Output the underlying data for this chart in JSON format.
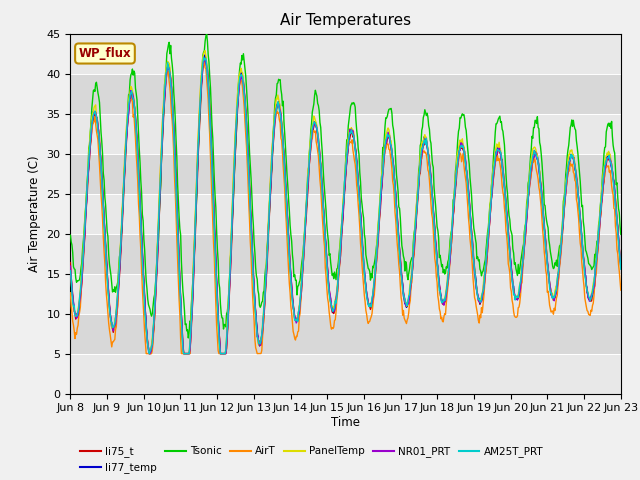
{
  "title": "Air Temperatures",
  "xlabel": "Time",
  "ylabel": "Air Temperature (C)",
  "ylim": [
    0,
    45
  ],
  "yticks": [
    0,
    5,
    10,
    15,
    20,
    25,
    30,
    35,
    40,
    45
  ],
  "n_days": 15,
  "x_tick_labels": [
    "Jun 8",
    "Jun 9",
    "Jun 10",
    "Jun 11",
    "Jun 12",
    "Jun 13",
    "Jun 14",
    "Jun 15",
    "Jun 16",
    "Jun 17",
    "Jun 18",
    "Jun 19",
    "Jun 20",
    "Jun 21",
    "Jun 22",
    "Jun 23"
  ],
  "series": {
    "li75_t": {
      "color": "#cc0000",
      "lw": 1.0
    },
    "li77_temp": {
      "color": "#0000cc",
      "lw": 1.0
    },
    "Tsonic": {
      "color": "#00cc00",
      "lw": 1.0
    },
    "AirT": {
      "color": "#ff8800",
      "lw": 1.0
    },
    "PanelTemp": {
      "color": "#dddd00",
      "lw": 1.0
    },
    "NR01_PRT": {
      "color": "#9900cc",
      "lw": 1.0
    },
    "AM25T_PRT": {
      "color": "#00cccc",
      "lw": 1.0
    }
  },
  "fig_bg": "#f0f0f0",
  "plot_bg": "#e8e8e8",
  "band_colors": [
    "#e8e8e8",
    "#d8d8d8"
  ],
  "annotation_text": "WP_flux",
  "annotation_fg": "#990000",
  "annotation_bg": "#ffffcc",
  "annotation_border": "#bb8800",
  "legend_ncol1": 6,
  "legend_ncol2": 1
}
